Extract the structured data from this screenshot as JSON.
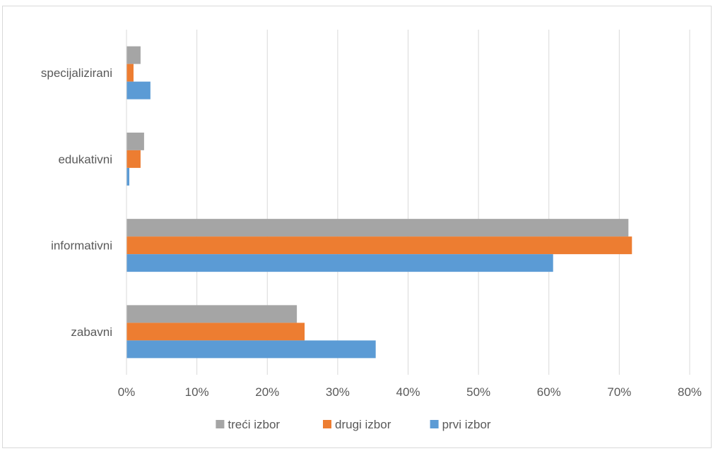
{
  "chart_data": {
    "type": "bar",
    "orientation": "horizontal",
    "categories": [
      "zabavni",
      "informativni",
      "edukativni",
      "specijalizirani"
    ],
    "series": [
      {
        "name": "treći izbor",
        "color": "#a5a5a5",
        "values": [
          24.2,
          71.3,
          2.5,
          2.0
        ]
      },
      {
        "name": "drugi izbor",
        "color": "#ed7d31",
        "values": [
          25.3,
          71.8,
          2.0,
          1.0
        ]
      },
      {
        "name": "prvi izbor",
        "color": "#5b9bd5",
        "values": [
          35.4,
          60.6,
          0.4,
          3.4
        ]
      }
    ],
    "x_ticks": [
      "0%",
      "10%",
      "20%",
      "30%",
      "40%",
      "50%",
      "60%",
      "70%",
      "80%"
    ],
    "xlim": [
      0,
      80
    ],
    "x_unit": "%",
    "grid": true,
    "legend": "bottom-center",
    "title": "",
    "xlabel": "",
    "ylabel": ""
  }
}
